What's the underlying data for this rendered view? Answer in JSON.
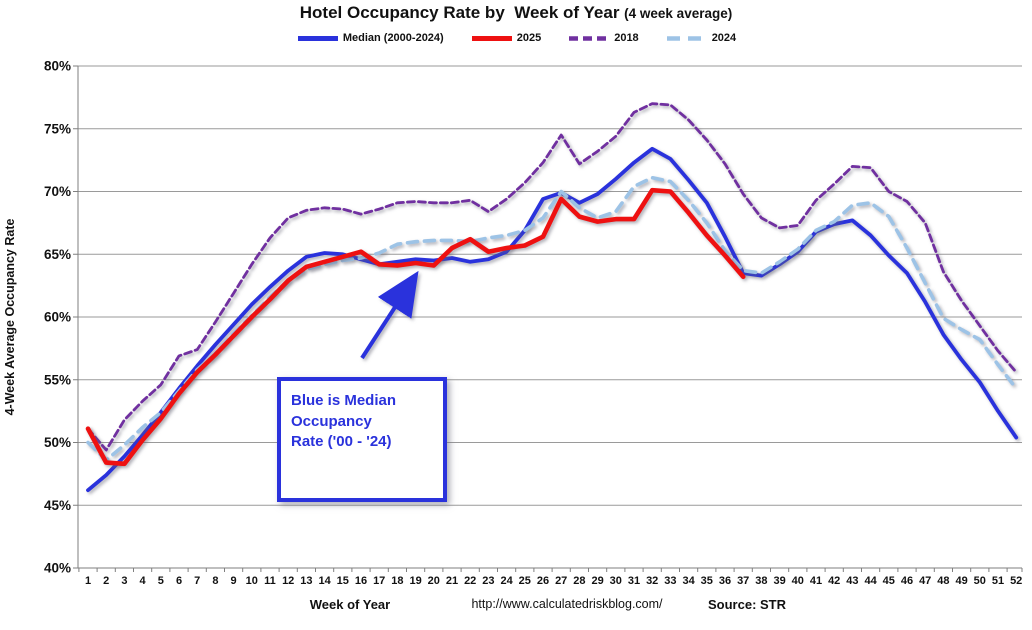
{
  "title": {
    "main": "Hotel Occupancy Rate by  Week of Year ",
    "suffix": "(4 week average)"
  },
  "annotation": {
    "text": "Blue is Median\nOccupancy\nRate ('00 - '24)",
    "color": "#2A32DC"
  },
  "footer": {
    "url": "http://www.calculatedriskblog.com/",
    "source": "Source: STR"
  },
  "chart_data": {
    "type": "line",
    "title": "Hotel Occupancy Rate by Week of Year (4 week average)",
    "xlabel": "Week of Year",
    "ylabel": "4-Week Average Occupancy Rate",
    "ylim": [
      40,
      80
    ],
    "yticks": [
      40,
      45,
      50,
      55,
      60,
      65,
      70,
      75,
      80
    ],
    "y_tick_suffix": "%",
    "grid": true,
    "legend_position": "top",
    "x": [
      1,
      2,
      3,
      4,
      5,
      6,
      7,
      8,
      9,
      10,
      11,
      12,
      13,
      14,
      15,
      16,
      17,
      18,
      19,
      20,
      21,
      22,
      23,
      24,
      25,
      26,
      27,
      28,
      29,
      30,
      31,
      32,
      33,
      34,
      35,
      36,
      37,
      38,
      39,
      40,
      41,
      42,
      43,
      44,
      45,
      46,
      47,
      48,
      49,
      50,
      51,
      52
    ],
    "series": [
      {
        "id": "2018",
        "name": "2018",
        "color": "#7030A0",
        "style": "dashed",
        "width": 2.8,
        "dash": "7 4",
        "values": [
          51.1,
          49.4,
          51.8,
          53.3,
          54.6,
          56.9,
          57.4,
          59.6,
          61.9,
          64.2,
          66.3,
          67.9,
          68.5,
          68.7,
          68.6,
          68.2,
          68.6,
          69.1,
          69.2,
          69.1,
          69.1,
          69.3,
          68.4,
          69.4,
          70.7,
          72.3,
          74.5,
          72.2,
          73.2,
          74.4,
          76.3,
          77.0,
          76.9,
          75.7,
          74.1,
          72.2,
          69.8,
          67.9,
          67.1,
          67.3,
          69.3,
          70.6,
          72.0,
          71.9,
          70.0,
          69.2,
          67.5,
          63.6,
          61.3,
          59.3,
          57.3,
          55.6
        ]
      },
      {
        "id": "median-2000-2024",
        "name": "Median (2000-2024)",
        "color": "#2A32DC",
        "style": "solid",
        "width": 3.8,
        "dash": "",
        "values": [
          46.2,
          47.4,
          48.9,
          50.6,
          52.4,
          54.3,
          56.1,
          57.8,
          59.4,
          61.0,
          62.4,
          63.7,
          64.8,
          65.1,
          65.0,
          64.6,
          64.2,
          64.4,
          64.6,
          64.5,
          64.7,
          64.4,
          64.6,
          65.2,
          66.9,
          69.4,
          69.9,
          69.1,
          69.8,
          71.0,
          72.3,
          73.4,
          72.6,
          70.9,
          69.1,
          66.4,
          63.5,
          63.3,
          64.2,
          65.2,
          66.8,
          67.4,
          67.7,
          66.5,
          64.9,
          63.5,
          61.2,
          58.6,
          56.6,
          54.8,
          52.5,
          50.4
        ]
      },
      {
        "id": "2024",
        "name": "2024",
        "color": "#9DC3E6",
        "style": "dashed",
        "width": 3.6,
        "dash": "10 7",
        "values": [
          50.0,
          48.6,
          49.8,
          51.2,
          52.4,
          54.1,
          55.8,
          57.1,
          58.7,
          60.1,
          61.6,
          62.9,
          63.8,
          64.2,
          64.5,
          64.7,
          65.1,
          65.8,
          66.0,
          66.1,
          66.1,
          66.0,
          66.3,
          66.5,
          66.9,
          67.9,
          70.0,
          68.7,
          67.9,
          68.4,
          70.4,
          71.1,
          70.8,
          69.3,
          67.5,
          65.3,
          63.7,
          63.5,
          64.4,
          65.4,
          66.9,
          67.6,
          68.9,
          69.1,
          68.0,
          65.5,
          62.7,
          59.9,
          59.0,
          58.2,
          56.2,
          54.3
        ]
      },
      {
        "id": "2025",
        "name": "2025",
        "color": "#EE1111",
        "style": "solid",
        "width": 4.6,
        "dash": "",
        "values": [
          51.1,
          48.4,
          48.3,
          50.2,
          51.9,
          53.9,
          55.6,
          57.0,
          58.5,
          60.0,
          61.4,
          62.9,
          64.0,
          64.4,
          64.8,
          65.2,
          64.2,
          64.1,
          64.3,
          64.1,
          65.5,
          66.2,
          65.2,
          65.5,
          65.7,
          66.4,
          69.4,
          68.0,
          67.6,
          67.8,
          67.8,
          70.1,
          70.0,
          68.3,
          66.5,
          64.9,
          63.2
        ]
      }
    ],
    "legend_order": [
      "median-2000-2024",
      "2025",
      "2018",
      "2024"
    ]
  }
}
